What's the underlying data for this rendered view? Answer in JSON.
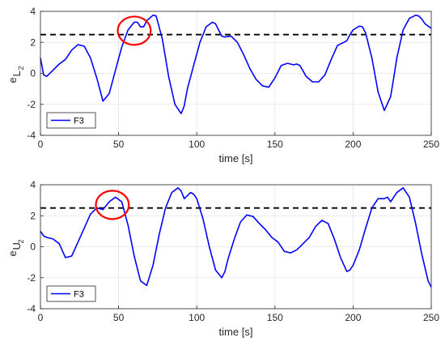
{
  "chart_data": [
    {
      "type": "line",
      "ylabel_main": "e",
      "ylabel_sub": "L",
      "ylabel_subsub": "2",
      "xlabel": "time [s]",
      "xlim": [
        0,
        250
      ],
      "ylim": [
        -4,
        4
      ],
      "xticks": [
        0,
        50,
        100,
        150,
        200,
        250
      ],
      "yticks": [
        -4,
        -2,
        0,
        2,
        4
      ],
      "grid": true,
      "legend_position": "bottom-left",
      "threshold": 2.5,
      "highlight": {
        "center": [
          60,
          2.75
        ],
        "rx": 9,
        "ry": 0.6
      },
      "series": [
        {
          "name": "F3",
          "color": "#0000ff",
          "x": [
            0,
            2,
            4,
            8,
            12,
            16,
            20,
            24,
            28,
            32,
            36,
            40,
            44,
            48,
            52,
            56,
            60,
            62,
            64,
            66,
            68,
            72,
            74,
            78,
            82,
            86,
            90,
            92,
            94,
            98,
            102,
            106,
            110,
            112,
            114,
            116,
            118,
            122,
            126,
            130,
            134,
            138,
            142,
            146,
            150,
            154,
            158,
            162,
            164,
            166,
            170,
            174,
            178,
            182,
            186,
            190,
            194,
            196,
            198,
            200,
            204,
            206,
            208,
            212,
            216,
            220,
            224,
            226,
            228,
            232,
            236,
            240,
            242,
            244,
            246,
            248,
            250
          ],
          "y": [
            1.0,
            -0.1,
            -0.2,
            0.2,
            0.6,
            0.9,
            1.5,
            1.85,
            1.75,
            1.0,
            -0.3,
            -1.8,
            -1.3,
            0.2,
            1.7,
            2.8,
            3.3,
            3.3,
            3.0,
            3.0,
            3.4,
            3.75,
            3.7,
            2.2,
            -0.2,
            -2.0,
            -2.6,
            -2.1,
            -1.0,
            0.5,
            2.0,
            3.0,
            3.3,
            3.2,
            2.8,
            2.4,
            2.35,
            2.4,
            2.0,
            1.2,
            0.3,
            -0.4,
            -0.8,
            -0.9,
            -0.3,
            0.5,
            0.65,
            0.55,
            0.6,
            0.5,
            -0.2,
            -0.55,
            -0.55,
            -0.1,
            0.9,
            1.8,
            2.0,
            2.1,
            2.5,
            2.8,
            3.05,
            3.0,
            2.6,
            1.0,
            -1.2,
            -2.4,
            -1.5,
            -0.3,
            1.0,
            2.8,
            3.55,
            3.75,
            3.7,
            3.5,
            3.2,
            3.05,
            2.9
          ]
        }
      ]
    },
    {
      "type": "line",
      "ylabel_main": "e",
      "ylabel_sub": "U",
      "ylabel_subsub": "2",
      "xlabel": "time [s]",
      "xlim": [
        0,
        250
      ],
      "ylim": [
        -4,
        4
      ],
      "xticks": [
        0,
        50,
        100,
        150,
        200,
        250
      ],
      "yticks": [
        -4,
        -2,
        0,
        2,
        4
      ],
      "grid": true,
      "legend_position": "bottom-left",
      "threshold": 2.5,
      "highlight": {
        "center": [
          46,
          2.7
        ],
        "rx": 9,
        "ry": 0.6
      },
      "series": [
        {
          "name": "F3",
          "color": "#0000ff",
          "x": [
            0,
            2,
            4,
            8,
            12,
            16,
            20,
            24,
            28,
            32,
            36,
            40,
            44,
            48,
            52,
            56,
            60,
            64,
            68,
            72,
            76,
            80,
            84,
            88,
            90,
            92,
            94,
            96,
            98,
            100,
            104,
            108,
            112,
            116,
            118,
            120,
            124,
            128,
            132,
            136,
            140,
            144,
            148,
            152,
            156,
            160,
            164,
            168,
            172,
            176,
            180,
            184,
            188,
            192,
            196,
            198,
            200,
            204,
            208,
            212,
            216,
            220,
            222,
            224,
            228,
            232,
            236,
            240,
            244,
            248,
            250
          ],
          "y": [
            1.0,
            0.7,
            0.6,
            0.5,
            0.2,
            -0.7,
            -0.6,
            0.3,
            1.2,
            2.1,
            2.5,
            2.4,
            2.9,
            3.2,
            2.9,
            1.4,
            -0.6,
            -2.2,
            -2.5,
            -1.2,
            0.8,
            2.5,
            3.5,
            3.8,
            3.6,
            3.1,
            3.3,
            3.5,
            3.4,
            3.1,
            1.8,
            0.0,
            -1.5,
            -2.0,
            -1.6,
            -0.8,
            0.5,
            1.6,
            2.05,
            1.95,
            1.5,
            1.1,
            0.6,
            0.3,
            -0.3,
            -0.4,
            -0.2,
            0.2,
            0.6,
            1.3,
            1.7,
            1.5,
            0.5,
            -0.7,
            -1.6,
            -1.5,
            -1.2,
            -0.2,
            1.2,
            2.5,
            3.1,
            3.1,
            3.2,
            2.9,
            3.5,
            3.8,
            3.2,
            1.5,
            -0.5,
            -2.2,
            -2.6
          ]
        }
      ]
    }
  ]
}
